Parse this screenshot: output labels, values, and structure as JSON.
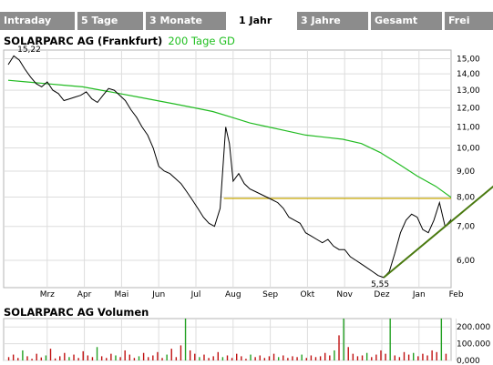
{
  "tabs": [
    {
      "label": "Intraday",
      "active": false
    },
    {
      "label": "5 Tage",
      "active": false
    },
    {
      "label": "3 Monate",
      "active": false
    },
    {
      "label": "1 Jahr",
      "active": true
    },
    {
      "label": "3 Jahre",
      "active": false
    },
    {
      "label": "Gesamt",
      "active": false
    },
    {
      "label": "Frei",
      "active": false
    }
  ],
  "header": {
    "title": "SOLARPARC AG (Frankfurt)",
    "ma_label": "200 Tage GD"
  },
  "volume": {
    "title": "SOLARPARC AG Volumen"
  },
  "colors": {
    "price_line": "#000000",
    "ma_line": "#22bb22",
    "horizontal_line": "#c8a800",
    "trend_line": "#4a7a10",
    "volume_bar": "#c01010",
    "volume_bar_alt": "#22a022",
    "tab_bg": "#8c8c8c"
  },
  "chart_data": [
    {
      "type": "line",
      "title": "SOLARPARC AG (Frankfurt)",
      "x_ticks": [
        "Mrz",
        "Apr",
        "Mai",
        "Jun",
        "Jul",
        "Aug",
        "Sep",
        "Okt",
        "Nov",
        "Dez",
        "Jan",
        "Feb"
      ],
      "y_ticks": [
        "6,00",
        "7,00",
        "8,00",
        "9,00",
        "10,00",
        "11,00",
        "12,00",
        "13,00",
        "14,00",
        "15,00"
      ],
      "y_scale": "log",
      "ylim": [
        5.3,
        15.6
      ],
      "grid": true,
      "x_unit": "months since start of chart (0 = early Feb, 12 = early Feb next year)",
      "series": [
        {
          "name": "SOLARPARC AG (Frankfurt)",
          "x": [
            0.0,
            0.15,
            0.3,
            0.45,
            0.6,
            0.75,
            0.9,
            1.05,
            1.2,
            1.35,
            1.5,
            1.65,
            1.8,
            1.95,
            2.1,
            2.25,
            2.4,
            2.55,
            2.7,
            2.85,
            3.0,
            3.15,
            3.3,
            3.45,
            3.6,
            3.75,
            3.9,
            4.05,
            4.2,
            4.35,
            4.5,
            4.65,
            4.8,
            4.95,
            5.1,
            5.25,
            5.4,
            5.55,
            5.7,
            5.85,
            5.95,
            6.05,
            6.2,
            6.35,
            6.5,
            6.65,
            6.8,
            6.95,
            7.1,
            7.25,
            7.4,
            7.55,
            7.7,
            7.85,
            8.0,
            8.15,
            8.3,
            8.45,
            8.6,
            8.75,
            8.9,
            9.05,
            9.2,
            9.35,
            9.5,
            9.65,
            9.8,
            9.95,
            10.1,
            10.25,
            10.4,
            10.55,
            10.7,
            10.85,
            11.0,
            11.15,
            11.3,
            11.45,
            11.6,
            11.75,
            11.9,
            12.05
          ],
          "values": [
            14.6,
            15.2,
            14.9,
            14.3,
            13.8,
            13.4,
            13.2,
            13.5,
            13.0,
            12.8,
            12.4,
            12.5,
            12.6,
            12.7,
            12.9,
            12.5,
            12.3,
            12.7,
            13.1,
            13.0,
            12.7,
            12.4,
            11.9,
            11.5,
            11.0,
            10.6,
            10.0,
            9.2,
            9.0,
            8.9,
            8.7,
            8.5,
            8.2,
            7.9,
            7.6,
            7.3,
            7.1,
            7.0,
            7.6,
            11.0,
            10.2,
            8.6,
            8.9,
            8.5,
            8.3,
            8.2,
            8.1,
            8.0,
            7.9,
            7.8,
            7.6,
            7.3,
            7.2,
            7.1,
            6.8,
            6.7,
            6.6,
            6.5,
            6.6,
            6.4,
            6.3,
            6.3,
            6.1,
            6.0,
            5.9,
            5.8,
            5.7,
            5.6,
            5.55,
            5.7,
            6.2,
            6.8,
            7.2,
            7.4,
            7.3,
            6.9,
            6.8,
            7.2,
            7.8,
            7.0,
            7.2,
            7.5
          ]
        },
        {
          "name": "200 Tage GD",
          "x": [
            0.0,
            0.5,
            1.0,
            1.5,
            2.0,
            2.5,
            3.0,
            3.5,
            4.0,
            4.5,
            5.0,
            5.5,
            6.0,
            6.5,
            7.0,
            7.5,
            8.0,
            8.5,
            9.0,
            9.5,
            10.0,
            10.5,
            11.0,
            11.5,
            11.9,
            12.05
          ],
          "values": [
            13.6,
            13.5,
            13.4,
            13.3,
            13.2,
            13.0,
            12.8,
            12.6,
            12.4,
            12.2,
            12.0,
            11.8,
            11.5,
            11.2,
            11.0,
            10.8,
            10.6,
            10.5,
            10.4,
            10.2,
            9.8,
            9.3,
            8.8,
            8.4,
            8.0,
            7.9
          ]
        }
      ],
      "annotations": [
        {
          "text": "15,22",
          "x": 0.15,
          "y": 15.22
        },
        {
          "text": "5,55",
          "x": 10.1,
          "y": 5.55
        }
      ],
      "reference_lines": [
        {
          "type": "horizontal",
          "y": 7.95,
          "x_from": 5.8,
          "x_to": 12.05
        },
        {
          "type": "trend",
          "x_from": 10.1,
          "y_from": 5.55,
          "x_to": 13.3,
          "y_to": 8.7
        }
      ]
    },
    {
      "type": "bar",
      "title": "SOLARPARC AG Volumen",
      "y_ticks": [
        "0,000",
        "100.000",
        "200.000"
      ],
      "ylim": [
        0,
        250000
      ],
      "values": [
        20000,
        35000,
        15000,
        60000,
        25000,
        10000,
        40000,
        18000,
        30000,
        70000,
        12000,
        25000,
        45000,
        20000,
        35000,
        15000,
        55000,
        30000,
        20000,
        80000,
        25000,
        15000,
        40000,
        30000,
        20000,
        60000,
        35000,
        15000,
        25000,
        45000,
        20000,
        30000,
        50000,
        15000,
        35000,
        70000,
        20000,
        90000,
        250000,
        60000,
        40000,
        20000,
        35000,
        15000,
        25000,
        50000,
        20000,
        30000,
        15000,
        40000,
        25000,
        10000,
        35000,
        20000,
        30000,
        15000,
        25000,
        40000,
        20000,
        30000,
        15000,
        25000,
        20000,
        35000,
        15000,
        30000,
        20000,
        25000,
        45000,
        30000,
        60000,
        150000,
        250000,
        80000,
        40000,
        25000,
        30000,
        45000,
        20000,
        35000,
        60000,
        40000,
        250000,
        30000,
        20000,
        50000,
        35000,
        45000,
        25000,
        40000,
        30000,
        60000,
        50000,
        250000,
        40000
      ],
      "colors": [
        "red",
        "red",
        "red",
        "green",
        "red",
        "red",
        "red",
        "red",
        "green",
        "red",
        "red",
        "red",
        "red",
        "green",
        "red",
        "red",
        "red",
        "red",
        "red",
        "green",
        "red",
        "red",
        "red",
        "green",
        "red",
        "red",
        "red",
        "red",
        "green",
        "red",
        "red",
        "red",
        "red",
        "red",
        "green",
        "red",
        "red",
        "red",
        "green",
        "red",
        "red",
        "green",
        "red",
        "red",
        "red",
        "red",
        "green",
        "red",
        "red",
        "red",
        "red",
        "red",
        "green",
        "red",
        "red",
        "red",
        "red",
        "red",
        "green",
        "red",
        "red",
        "red",
        "red",
        "green",
        "red",
        "red",
        "red",
        "red",
        "red",
        "red",
        "green",
        "red",
        "green",
        "red",
        "red",
        "red",
        "red",
        "green",
        "red",
        "red",
        "red",
        "red",
        "green",
        "red",
        "red",
        "red",
        "red",
        "green",
        "red",
        "red",
        "red",
        "red",
        "red",
        "green",
        "red"
      ]
    }
  ]
}
